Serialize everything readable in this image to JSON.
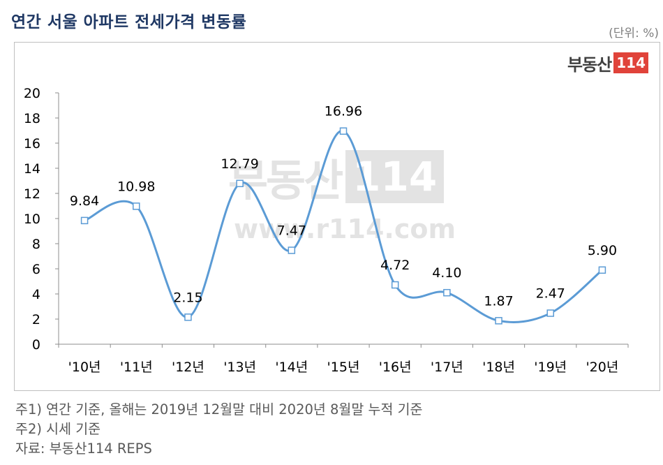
{
  "header": {
    "title": "연간 서울 아파트 전세가격 변동률",
    "unit": "(단위: %)"
  },
  "logo": {
    "text": "부동산",
    "number": "114"
  },
  "watermark": {
    "text": "부동산",
    "number": "114",
    "url": "www.r114.com"
  },
  "chart_data": {
    "type": "line",
    "categories": [
      "'10년",
      "'11년",
      "'12년",
      "'13년",
      "'14년",
      "'15년",
      "'16년",
      "'17년",
      "'18년",
      "'19년",
      "'20년"
    ],
    "series": [
      {
        "values": [
          9.84,
          10.98,
          2.15,
          12.79,
          7.47,
          16.96,
          4.72,
          4.1,
          1.87,
          2.47,
          5.9
        ]
      }
    ],
    "data_labels": [
      "9.84",
      "10.98",
      "2.15",
      "12.79",
      "7.47",
      "16.96",
      "4.72",
      "4.10",
      "1.87",
      "2.47",
      "5.90"
    ],
    "ylim": [
      0,
      20
    ],
    "yticks": [
      0,
      2,
      4,
      6,
      8,
      10,
      12,
      14,
      16,
      18,
      20
    ],
    "xlabel": "",
    "ylabel": "",
    "line_color": "#5b9bd5",
    "smooth": true,
    "grid": false
  },
  "footnotes": {
    "note1": "주1) 연간 기준, 올해는 2019년 12월말 대비 2020년 8월말 누적 기준",
    "note2": "주2) 시세 기준",
    "source": "자료: 부동산114 REPS"
  }
}
